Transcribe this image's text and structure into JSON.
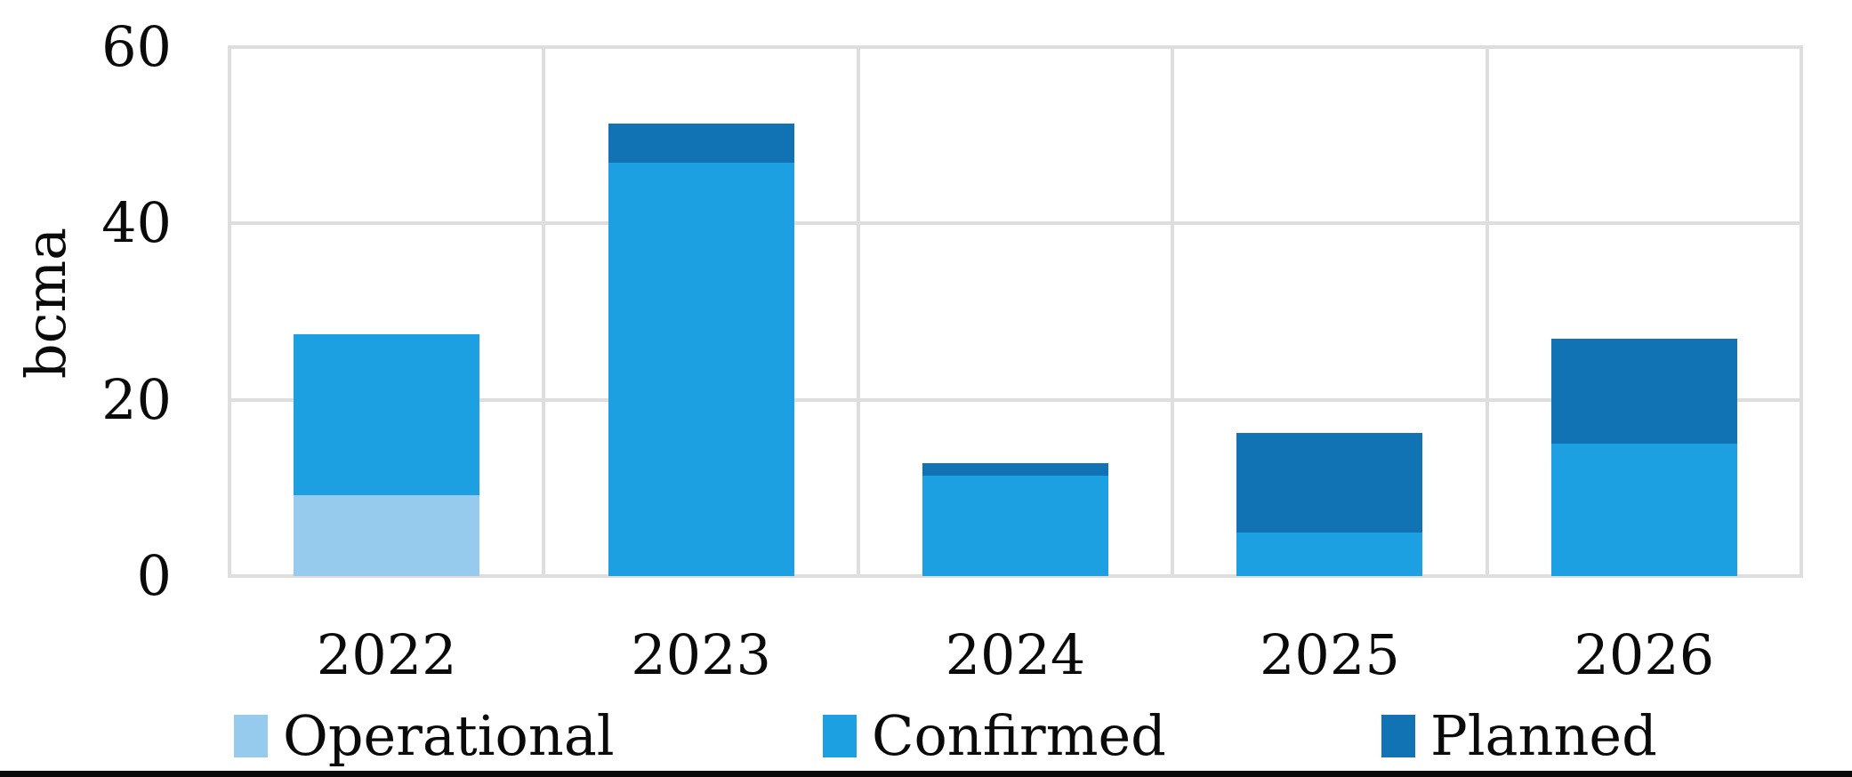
{
  "chart_data": {
    "type": "bar",
    "stacked": true,
    "title": "",
    "categories": [
      "2022",
      "2023",
      "2024",
      "2025",
      "2026"
    ],
    "series": [
      {
        "name": "Operational",
        "color": "#96cbee",
        "values": [
          9.2,
          0,
          0,
          0,
          0
        ]
      },
      {
        "name": "Confirmed",
        "color": "#1da0e1",
        "values": [
          18.2,
          46.9,
          11.4,
          4.9,
          15.0
        ]
      },
      {
        "name": "Planned",
        "color": "#1173b4",
        "values": [
          0,
          4.4,
          1.4,
          11.3,
          11.9
        ]
      }
    ],
    "xlabel": "",
    "ylabel": "bcma",
    "ylim": [
      0,
      60
    ],
    "yticks": [
      0,
      20,
      40,
      60
    ],
    "grid": true,
    "legend_position": "bottom",
    "legend_labels": [
      "Operational",
      "Confirmed",
      "Planned"
    ]
  },
  "colors": {
    "grid": "#dedede",
    "text": "#0a0a0a",
    "background": "#ffffff",
    "bottom_rule": "#0a0a0a",
    "operational": "#96cbee",
    "confirmed": "#1da0e1",
    "planned": "#1173b4"
  }
}
